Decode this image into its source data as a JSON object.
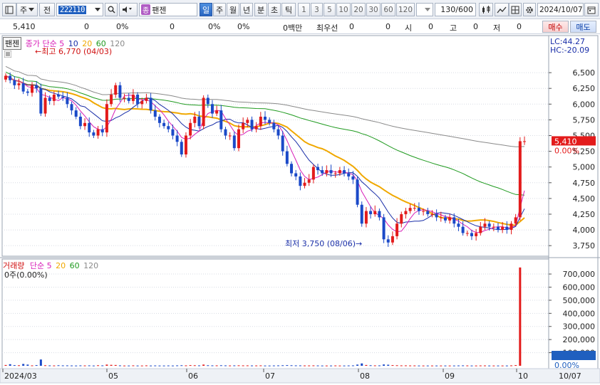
{
  "toolbar": {
    "market_label": "주",
    "type_label": "전",
    "stock_code": "222110",
    "stock_badge": "종",
    "stock_name": "팬젠",
    "periods": [
      "일",
      "주",
      "월",
      "년",
      "분",
      "초",
      "틱"
    ],
    "active_period": "일",
    "intervals": [
      "1",
      "3",
      "5",
      "10",
      "20",
      "30",
      "60",
      "120"
    ],
    "count_display": "130/600",
    "date_value": "2024/10/07"
  },
  "quote": {
    "price": "5,410",
    "change": "0",
    "change_pct": "0%",
    "volume": "0",
    "volume_pct": "0%",
    "amount": "0%",
    "trade_amount": "0백만",
    "priority_label": "최우선",
    "priority_bid": "0",
    "priority_ask": "0",
    "open_label": "시",
    "open_value": "0",
    "high_label": "고",
    "high_value": "0",
    "low_label": "저",
    "low_value": "0",
    "buy_label": "매수",
    "sell_label": "매도"
  },
  "price_legend": {
    "stock_name": "팬젠",
    "label": "종가 단순 5",
    "ma10": "10",
    "ma20": "20",
    "ma60": "60",
    "ma120": "120",
    "max_marker": "최고 6,770 (04/03)",
    "min_marker": "최저 3,750 (08/06)",
    "lc": "LC:44.27",
    "hc": "HC:-20.09"
  },
  "volume_legend": {
    "label": "거래량",
    "ma_label": "단순 5",
    "ma20": "20",
    "ma60": "60",
    "ma120": "120",
    "current": "0주(0.00%)"
  },
  "colors": {
    "up": "#e31b1b",
    "down": "#1a49c8",
    "ma5": "#d81fb8",
    "ma10": "#1a2fa8",
    "ma20": "#f0a800",
    "ma60": "#1f9a1f",
    "ma120": "#8a8a8a"
  },
  "chart_data": {
    "type": "candlestick",
    "dates_axis": [
      "2024/03",
      "05",
      "06",
      "07",
      "08",
      "09",
      "10",
      "10/07"
    ],
    "price_ticks": [
      "6,500",
      "6,250",
      "6,000",
      "5,750",
      "5,500",
      "5,250",
      "5,000",
      "4,750",
      "4,500",
      "4,250",
      "4,000",
      "3,750"
    ],
    "last_price_label": "5,410",
    "last_pct_label": "0.00%",
    "volume_ticks": [
      "700,000",
      "600,000",
      "500,000",
      "400,000",
      "300,000",
      "200,000",
      "100,000"
    ],
    "volume_last_pct": "0.00%",
    "price_range": [
      3650,
      6750
    ],
    "volume_range": [
      0,
      760000
    ],
    "closes": [
      6450,
      6380,
      6300,
      6330,
      6200,
      6180,
      6300,
      6250,
      5850,
      6100,
      6050,
      6150,
      6120,
      6100,
      6000,
      5900,
      5800,
      5650,
      5700,
      5550,
      5500,
      5600,
      5550,
      6000,
      6150,
      6300,
      6100,
      6100,
      6050,
      6150,
      6000,
      6050,
      6100,
      5900,
      5800,
      5700,
      5650,
      5600,
      5500,
      5400,
      5200,
      5500,
      5700,
      5800,
      5650,
      6100,
      6000,
      5850,
      5900,
      5600,
      5500,
      5500,
      5300,
      5600,
      5700,
      5750,
      5600,
      5650,
      5800,
      5750,
      5700,
      5600,
      5500,
      5250,
      5050,
      4900,
      4850,
      4700,
      4750,
      4800,
      5000,
      4950,
      4900,
      4950,
      4900,
      4900,
      4950,
      4900,
      4850,
      4800,
      4400,
      4100,
      4300,
      4250,
      4300,
      4200,
      3850,
      3800,
      3900,
      4100,
      4250,
      4300,
      4350,
      4350,
      4300,
      4300,
      4250,
      4250,
      4200,
      4200,
      4150,
      4200,
      4100,
      4050,
      3950,
      3950,
      3900,
      3950,
      4050,
      4100,
      4050,
      4050,
      4000,
      4050,
      4000,
      4100,
      4200,
      5410,
      5410
    ],
    "volumes": [
      6000,
      12000,
      5000,
      4000,
      14000,
      9000,
      3000,
      5000,
      48000,
      4000,
      3000,
      2500,
      4000,
      3000,
      3000,
      2500,
      2000,
      3000,
      2500,
      3000,
      2000,
      4000,
      3000,
      9000,
      7000,
      6000,
      3000,
      2000,
      2000,
      3000,
      2000,
      2000,
      3000,
      2000,
      2500,
      2000,
      2000,
      2500,
      2000,
      3000,
      4000,
      3000,
      5000,
      4000,
      3000,
      9000,
      4000,
      3000,
      3000,
      4000,
      3000,
      2500,
      3000,
      3500,
      3000,
      3000,
      2500,
      2500,
      3000,
      2000,
      2000,
      2500,
      3000,
      4000,
      5000,
      4000,
      3000,
      3000,
      2500,
      2500,
      3000,
      2500,
      2000,
      2000,
      2000,
      2500,
      2000,
      2000,
      2500,
      3000,
      9000,
      18000,
      6000,
      4000,
      3000,
      3000,
      10000,
      8000,
      5000,
      4000,
      3000,
      3000,
      2500,
      2500,
      2000,
      2000,
      2000,
      2000,
      2000,
      2000,
      2000,
      2000,
      2000,
      2500,
      3000,
      2500,
      2000,
      2000,
      2500,
      2500,
      2000,
      2000,
      2000,
      2000,
      2000,
      3000,
      5000,
      750000,
      0
    ]
  }
}
